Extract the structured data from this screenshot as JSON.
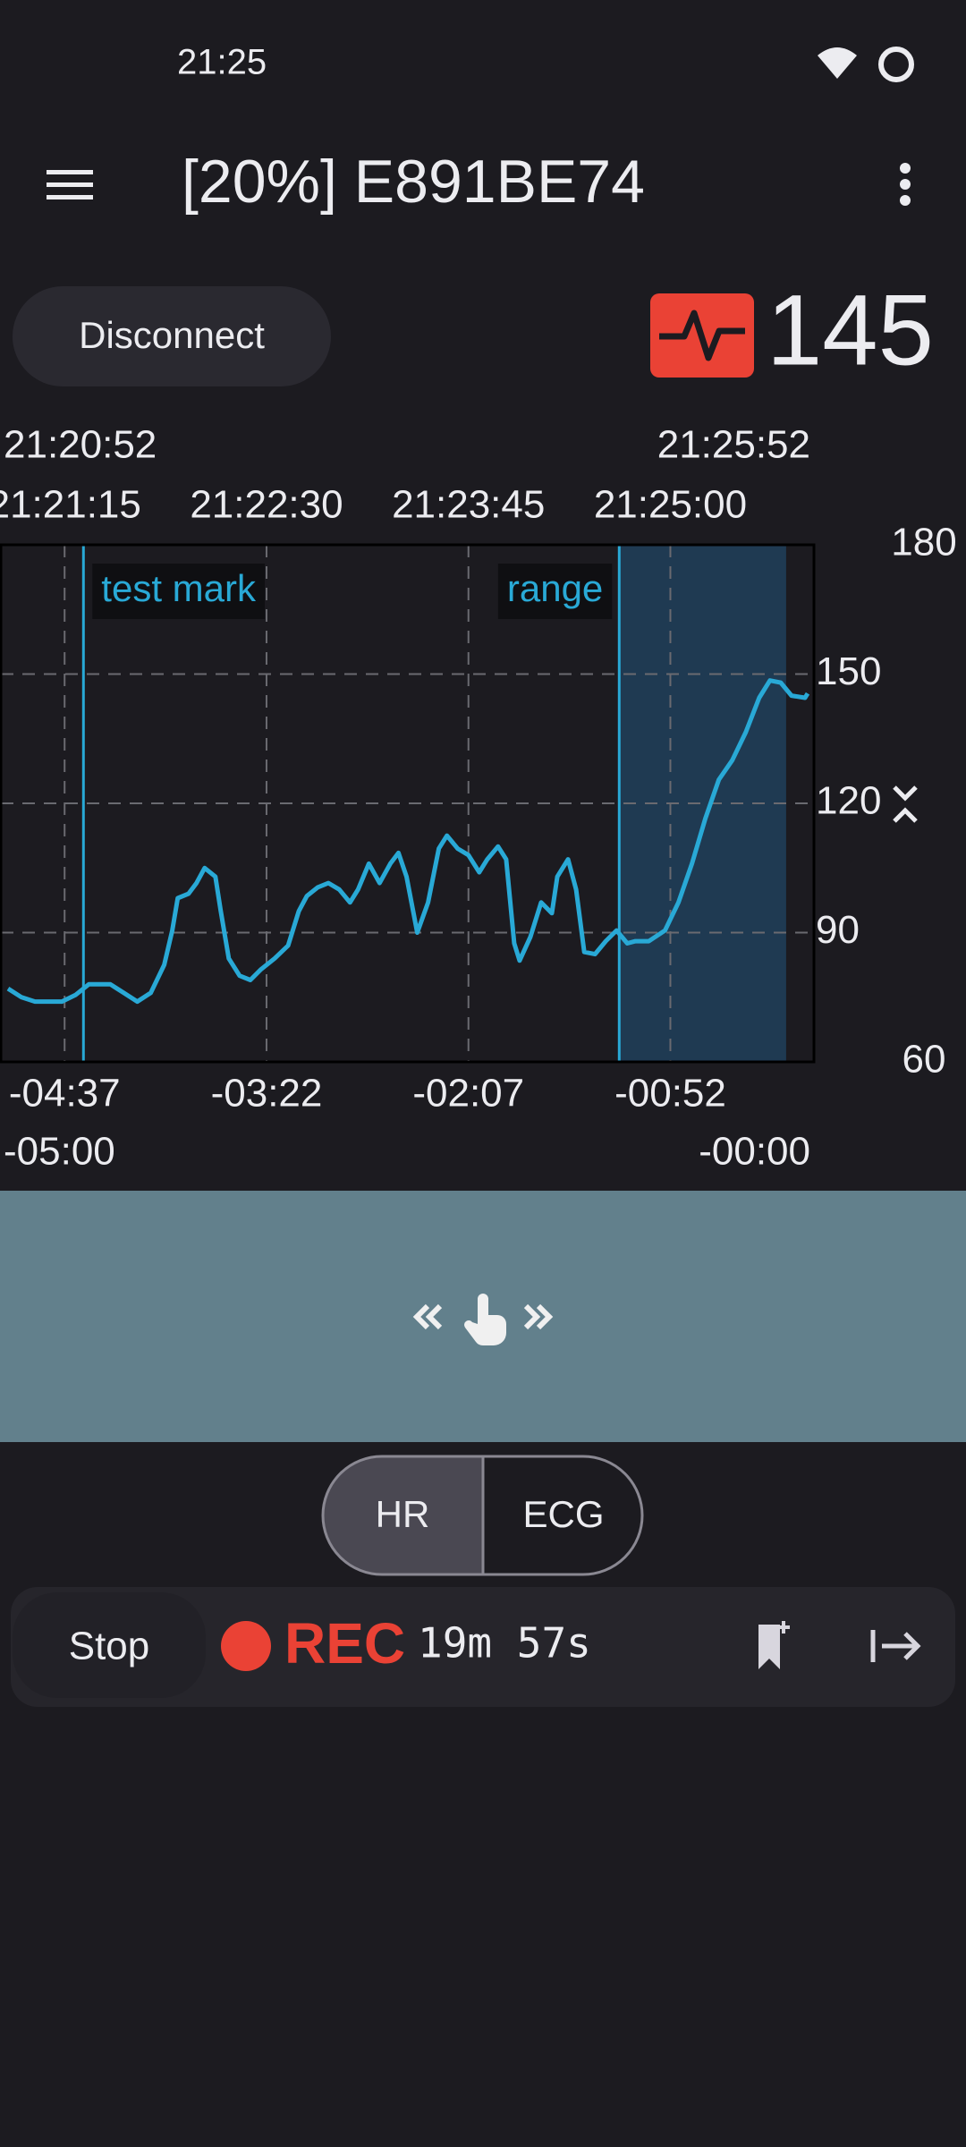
{
  "status_bar": {
    "time": "21:25"
  },
  "app_bar": {
    "title": "[20%] E891BE74"
  },
  "disconnect_button": {
    "label": "Disconnect"
  },
  "heart_rate": {
    "value": 145
  },
  "chart_data": {
    "type": "line",
    "x": [
      -298,
      -293,
      -288,
      -278,
      -273,
      -268,
      -260,
      -255,
      -250,
      -245,
      -240,
      -237,
      -235,
      -231,
      -228,
      -225,
      -221,
      -219,
      -216,
      -212,
      -208,
      -204,
      -199,
      -194,
      -190,
      -187,
      -183,
      -179,
      -175,
      -171,
      -168,
      -164,
      -160,
      -156,
      -153,
      -150,
      -146,
      -142,
      -138,
      -135,
      -131,
      -127,
      -123,
      -120,
      -116,
      -113,
      -110,
      -108,
      -104,
      -100,
      -96,
      -94,
      -90,
      -87,
      -84,
      -80,
      -76,
      -72,
      -68,
      -65,
      -60,
      -54,
      -49,
      -44,
      -39,
      -34,
      -29,
      -24,
      -19,
      -15,
      -11,
      -7,
      -2,
      -1
    ],
    "series": [
      {
        "color": "#29a9d6",
        "values": [
          77,
          75,
          74,
          74,
          75.5,
          78,
          78,
          76,
          74,
          76,
          82.5,
          90.5,
          98,
          99,
          101.5,
          105,
          103,
          95,
          84,
          80,
          79,
          81.5,
          84,
          87,
          95,
          98.5,
          100.5,
          101.5,
          100,
          97,
          100,
          106,
          101.5,
          106,
          108.5,
          103,
          90,
          97,
          109.5,
          112.5,
          109.5,
          108,
          104,
          107,
          110,
          107,
          87.5,
          83.5,
          89,
          97,
          94.5,
          103,
          107,
          100,
          85.5,
          85,
          88,
          90.5,
          87.5,
          88,
          88,
          90.5,
          97,
          106,
          116.5,
          125.5,
          130,
          136.5,
          144.5,
          148.5,
          148,
          145,
          144.5,
          145.5
        ]
      }
    ],
    "xlim": [
      -300,
      0
    ],
    "ylim": [
      60,
      180
    ],
    "yticks": [
      60,
      90,
      120,
      150,
      180
    ],
    "xticks": [
      {
        "value": -300,
        "label": "-05:00"
      },
      {
        "value": -277,
        "label": "-04:37"
      },
      {
        "value": -202,
        "label": "-03:22"
      },
      {
        "value": -127,
        "label": "-02:07"
      },
      {
        "value": -52,
        "label": "-00:52"
      },
      {
        "value": 0,
        "label": "-00:00"
      }
    ],
    "x2ticks": [
      {
        "value": -300,
        "label": "21:20:52"
      },
      {
        "value": -277,
        "label": "21:21:15"
      },
      {
        "value": -202,
        "label": "21:22:30"
      },
      {
        "value": -127,
        "label": "21:23:45"
      },
      {
        "value": -52,
        "label": "21:25:00"
      },
      {
        "value": 0,
        "label": "21:25:52"
      }
    ],
    "annotations": [
      {
        "label": "test mark",
        "x": -270
      },
      {
        "label": "range",
        "x": [
          -71,
          -9
        ]
      }
    ],
    "grid": true
  },
  "view_toggle": {
    "options": [
      "HR",
      "ECG"
    ],
    "selected": 0
  },
  "recording_bar": {
    "stop_label": "Stop",
    "status": "REC",
    "elapsed": "19m 57s"
  }
}
